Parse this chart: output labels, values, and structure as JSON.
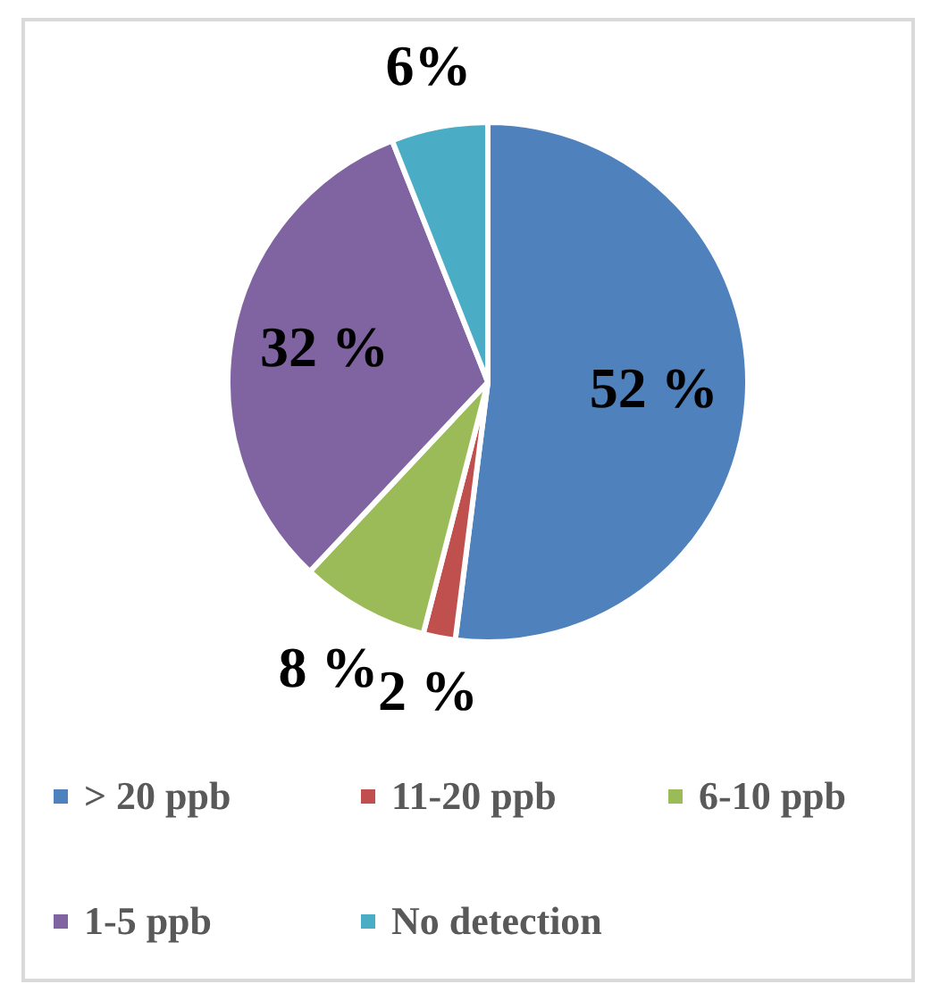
{
  "chart_data": {
    "type": "pie",
    "categories": [
      "> 20 ppb",
      "11-20 ppb",
      "6-10 ppb",
      "1-5 ppb",
      "No detection"
    ],
    "values": [
      52,
      2,
      8,
      32,
      6
    ],
    "colors": [
      "#4f81bd",
      "#c0504d",
      "#9bbb59",
      "#8064a2",
      "#4bacc6"
    ],
    "value_labels": [
      "52 %",
      "2 %",
      "8 %",
      "32 %",
      "6%"
    ],
    "legend": "bottom"
  }
}
